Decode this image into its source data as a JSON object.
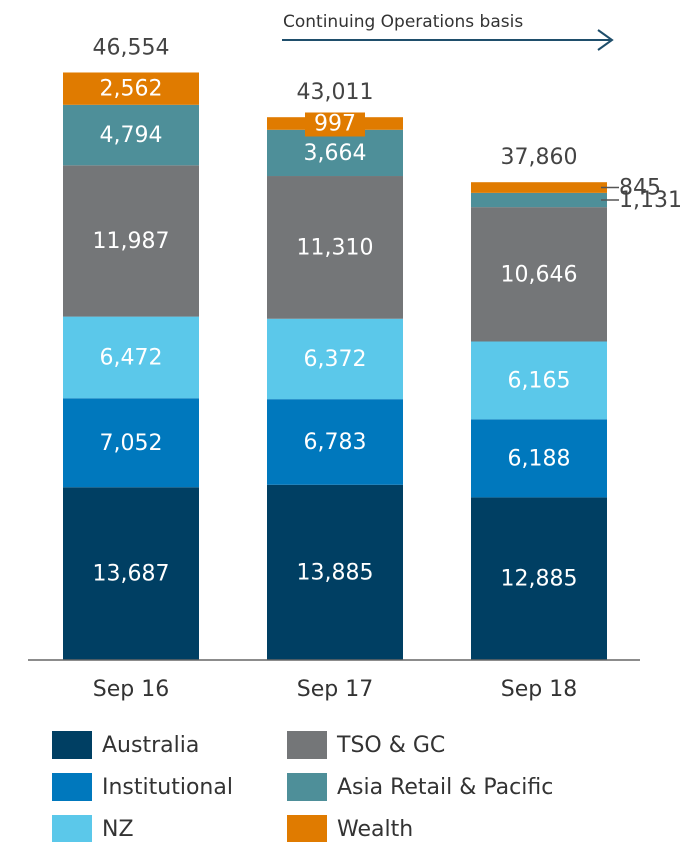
{
  "chart_data": {
    "type": "bar",
    "stacked": true,
    "annotation": "Continuing Operations basis",
    "categories": [
      "Sep 16",
      "Sep 17",
      "Sep 18"
    ],
    "series": [
      {
        "name": "Australia",
        "color": "#003f63",
        "values": [
          13687,
          13885,
          12885
        ],
        "value_labels": [
          "13,687",
          "13,885",
          "12,885"
        ]
      },
      {
        "name": "Institutional",
        "color": "#0078bd",
        "values": [
          7052,
          6783,
          6188
        ],
        "value_labels": [
          "7,052",
          "6,783",
          "6,188"
        ]
      },
      {
        "name": "NZ",
        "color": "#5bc8ea",
        "values": [
          6472,
          6372,
          6165
        ],
        "value_labels": [
          "6,472",
          "6,372",
          "6,165"
        ]
      },
      {
        "name": "TSO & GC",
        "color": "#747678",
        "values": [
          11987,
          11310,
          10646
        ],
        "value_labels": [
          "11,987",
          "11,310",
          "10,646"
        ]
      },
      {
        "name": "Asia Retail & Pacific",
        "color": "#4e8f99",
        "values": [
          4794,
          3664,
          1131
        ],
        "value_labels": [
          "4,794",
          "3,664",
          "1,131"
        ]
      },
      {
        "name": "Wealth",
        "color": "#e07b00",
        "values": [
          2562,
          997,
          845
        ],
        "value_labels": [
          "2,562",
          "997",
          "845"
        ]
      }
    ],
    "totals": [
      46554,
      43011,
      37860
    ],
    "total_labels": [
      "46,554",
      "43,011",
      "37,860"
    ],
    "ylim": [
      0,
      50000
    ]
  }
}
